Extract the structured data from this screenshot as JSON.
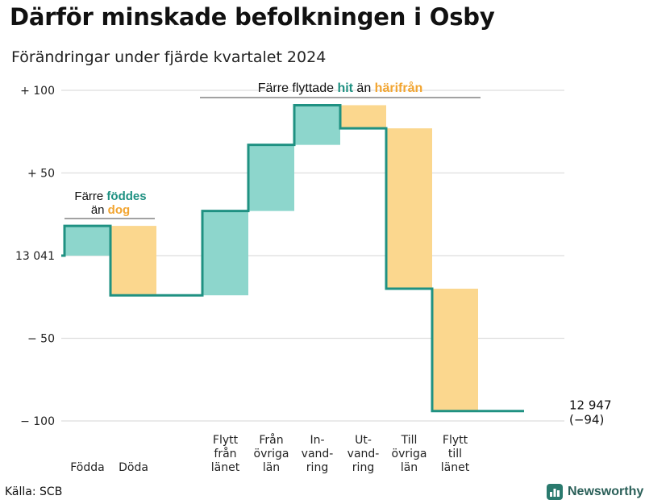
{
  "title": "Därför minskade befolkningen i Osby",
  "subtitle": "Förändringar under fjärde kvartalet 2024",
  "source": "Källa: SCB",
  "brand": {
    "name": "Newsworthy",
    "icon": "bar-chart-icon"
  },
  "colors": {
    "increase": "#8dd6cc",
    "decrease": "#fbd78e",
    "line": "#1f9182",
    "accent_green": "#1f9182",
    "accent_orange": "#f2a531",
    "grid": "#dddddd"
  },
  "chart_data": {
    "type": "waterfall",
    "start_value": 13041,
    "end_value": 12947,
    "end_change": "(−94)",
    "end_label": "12 947",
    "ylim": [
      -100,
      100
    ],
    "yticks": [
      {
        "value": 100,
        "label": "+ 100"
      },
      {
        "value": 50,
        "label": "+  50"
      },
      {
        "value": 0,
        "label": "13 041"
      },
      {
        "value": -50,
        "label": "−  50"
      },
      {
        "value": -100,
        "label": "− 100"
      }
    ],
    "steps": [
      {
        "label": [
          "Födda"
        ],
        "change": 18,
        "from": 0,
        "to": 18
      },
      {
        "label": [
          "Döda"
        ],
        "change": -42,
        "from": 18,
        "to": -24
      },
      {
        "label": [],
        "change": 0,
        "from": -24,
        "to": -24
      },
      {
        "label": [
          "Flytt",
          "från",
          "länet"
        ],
        "change": 51,
        "from": -24,
        "to": 27
      },
      {
        "label": [
          "Från",
          "övriga",
          "län"
        ],
        "change": 40,
        "from": 27,
        "to": 67
      },
      {
        "label": [
          "In-",
          "vand-",
          "ring"
        ],
        "change": 24,
        "from": 67,
        "to": 91
      },
      {
        "label": [
          "Ut-",
          "vand-",
          "ring"
        ],
        "change": -14,
        "from": 91,
        "to": 77
      },
      {
        "label": [
          "Till",
          "övriga",
          "län"
        ],
        "change": -97,
        "from": 77,
        "to": -20
      },
      {
        "label": [
          "Flytt",
          "till",
          "länet"
        ],
        "change": -74,
        "from": -20,
        "to": -94
      },
      {
        "label": [],
        "change": 0,
        "from": -94,
        "to": -94
      }
    ],
    "annotations": {
      "births": {
        "line1_prefix": "Färre ",
        "line1_highlight": "föddes",
        "line2_prefix": "än ",
        "line2_highlight": "dog"
      },
      "moves": {
        "prefix": "Färre flyttade ",
        "highlight1": "hit",
        "middle": " än ",
        "highlight2": "härifrån"
      }
    }
  }
}
